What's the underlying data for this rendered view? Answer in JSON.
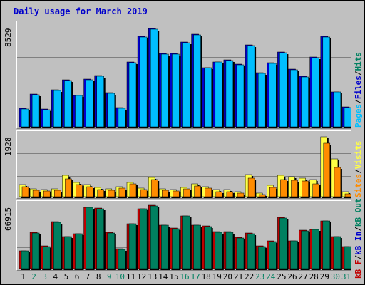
{
  "title": "Daily usage for March 2019",
  "colors": {
    "pages": "#00bfff",
    "files": "#0000cc",
    "hits": "#008060",
    "visits": "#ffff44",
    "sites": "#ff8c00",
    "kb_f": "#c00000",
    "kb_in": "#0000cc",
    "kb_out": "#008060",
    "weekday_label": "#000000",
    "weekend_label": "#008060"
  },
  "chart_data": [
    {
      "type": "bar",
      "title": "Daily usage for March 2019",
      "max_label": "8529",
      "legend": [
        "Pages",
        "/",
        "Files",
        "/",
        "Hits"
      ],
      "categories": [
        "1",
        "2",
        "3",
        "4",
        "5",
        "6",
        "7",
        "8",
        "9",
        "10",
        "11",
        "12",
        "13",
        "14",
        "15",
        "16",
        "17",
        "18",
        "19",
        "20",
        "21",
        "22",
        "23",
        "24",
        "25",
        "26",
        "27",
        "28",
        "29",
        "30",
        "31"
      ],
      "weekend_days": [
        "2",
        "3",
        "9",
        "10",
        "16",
        "17",
        "23",
        "24",
        "30",
        "31"
      ],
      "ylim": [
        0,
        8529
      ],
      "series": [
        {
          "name": "Files",
          "values": [
            1600,
            2850,
            1550,
            3200,
            4050,
            2750,
            4150,
            4450,
            2950,
            1650,
            5600,
            7850,
            8529,
            6350,
            6350,
            7350,
            8050,
            5150,
            5650,
            5800,
            5450,
            7100,
            4700,
            5550,
            6500,
            5000,
            4400,
            6050,
            7850,
            3050,
            1700
          ]
        },
        {
          "name": "Pages",
          "values": [
            1550,
            2800,
            1500,
            3150,
            4000,
            2700,
            4100,
            4400,
            2900,
            1600,
            5550,
            7800,
            8450,
            6300,
            6300,
            7300,
            8000,
            5100,
            5600,
            5750,
            5400,
            7050,
            4650,
            5500,
            6450,
            4950,
            4350,
            6000,
            7800,
            3000,
            1650
          ]
        }
      ]
    },
    {
      "type": "bar",
      "max_label": "1928",
      "legend": [
        "Sites",
        "/",
        "Visits"
      ],
      "ylim": [
        0,
        1928
      ],
      "series": [
        {
          "name": "Visits",
          "values": [
            380,
            250,
            240,
            250,
            690,
            470,
            400,
            300,
            260,
            320,
            470,
            280,
            630,
            260,
            230,
            300,
            410,
            330,
            220,
            220,
            150,
            710,
            120,
            370,
            690,
            650,
            600,
            560,
            1928,
            1220,
            160
          ]
        },
        {
          "name": "Sites",
          "values": [
            330,
            200,
            180,
            200,
            580,
            390,
            330,
            240,
            210,
            270,
            410,
            220,
            540,
            200,
            190,
            250,
            340,
            280,
            170,
            160,
            110,
            590,
            80,
            290,
            560,
            530,
            500,
            420,
            1710,
            950,
            90
          ]
        }
      ]
    },
    {
      "type": "bar",
      "max_label": "66915",
      "legend": [
        "kB F",
        "/",
        "kB In",
        "/",
        "kB Out"
      ],
      "ylim": [
        0,
        66915
      ],
      "series": [
        {
          "name": "kB F",
          "values": [
            19000,
            38000,
            24000,
            49500,
            34000,
            37000,
            65000,
            64000,
            38000,
            21000,
            47500,
            63500,
            66915,
            46000,
            42500,
            56000,
            46000,
            45000,
            39000,
            39000,
            33000,
            37500,
            24000,
            29000,
            54000,
            29500,
            40500,
            41500,
            50500,
            34000,
            23500
          ]
        },
        {
          "name": "kB Out",
          "values": [
            18500,
            37500,
            23500,
            49000,
            33500,
            36500,
            64500,
            63500,
            37500,
            20500,
            47000,
            63000,
            66500,
            45500,
            42000,
            55500,
            45500,
            44500,
            38500,
            38500,
            32500,
            37000,
            23500,
            28500,
            53500,
            29000,
            40000,
            41000,
            50000,
            33500,
            23000
          ]
        }
      ]
    }
  ]
}
